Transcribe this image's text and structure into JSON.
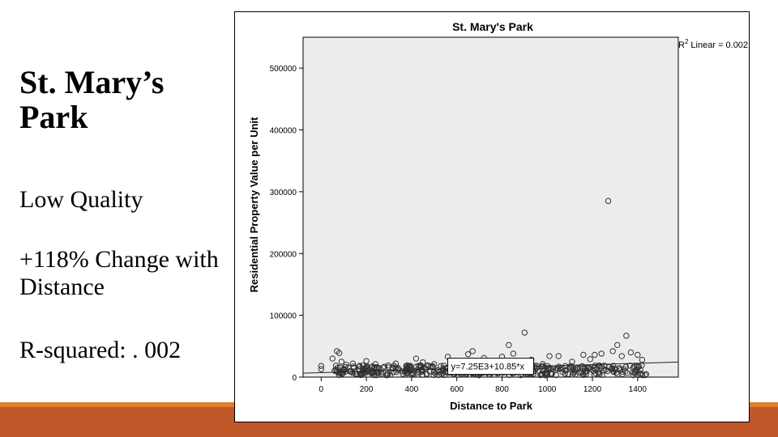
{
  "slide": {
    "title": "St. Mary’s Park",
    "quality": "Low Quality",
    "change": "+118% Change with Distance",
    "rsquared": "R-squared: . 002"
  },
  "colors": {
    "plot_bg": "#ececec",
    "marker": "#333333",
    "bar_light": "#e07d2e",
    "bar_dark": "#c0582a"
  },
  "chart_data": {
    "type": "scatter",
    "title": "St. Mary's Park",
    "xlabel": "Distance to Park",
    "ylabel": "Residential Property Value per Unit",
    "xlim": [
      -80,
      1580
    ],
    "ylim": [
      0,
      550000
    ],
    "xticks": [
      0,
      200,
      400,
      600,
      800,
      1000,
      1200,
      1400
    ],
    "yticks": [
      0,
      100000,
      200000,
      300000,
      400000,
      500000
    ],
    "xtick_labels": [
      "0",
      "200",
      "400",
      "600",
      "800",
      "1000",
      "1200",
      "1400"
    ],
    "ytick_labels": [
      "0",
      "100000",
      "200000",
      "300000",
      "400000",
      "500000"
    ],
    "fit_line": {
      "intercept": 7250,
      "slope": 10.85,
      "label": "y=7.25E3+10.85*x"
    },
    "legend": {
      "r2_symbol": "R",
      "r2_exponent": "2",
      "text": "Linear = 0.002"
    },
    "grid": false,
    "points": [
      {
        "x": 0,
        "y": 13000
      },
      {
        "x": 0,
        "y": 18000
      },
      {
        "x": 50,
        "y": 30000
      },
      {
        "x": 70,
        "y": 42000
      },
      {
        "x": 80,
        "y": 39000
      },
      {
        "x": 90,
        "y": 25000
      },
      {
        "x": 110,
        "y": 20000
      },
      {
        "x": 140,
        "y": 22000
      },
      {
        "x": 170,
        "y": 18000
      },
      {
        "x": 200,
        "y": 26000
      },
      {
        "x": 240,
        "y": 21000
      },
      {
        "x": 280,
        "y": 17000
      },
      {
        "x": 330,
        "y": 22000
      },
      {
        "x": 380,
        "y": 19000
      },
      {
        "x": 420,
        "y": 30000
      },
      {
        "x": 450,
        "y": 24000
      },
      {
        "x": 500,
        "y": 21000
      },
      {
        "x": 560,
        "y": 33000
      },
      {
        "x": 600,
        "y": 22000
      },
      {
        "x": 650,
        "y": 37000
      },
      {
        "x": 670,
        "y": 42000
      },
      {
        "x": 720,
        "y": 31000
      },
      {
        "x": 800,
        "y": 33000
      },
      {
        "x": 830,
        "y": 52000
      },
      {
        "x": 850,
        "y": 38000
      },
      {
        "x": 900,
        "y": 72000
      },
      {
        "x": 930,
        "y": 28000
      },
      {
        "x": 980,
        "y": 21000
      },
      {
        "x": 1010,
        "y": 34000
      },
      {
        "x": 1050,
        "y": 34000
      },
      {
        "x": 1110,
        "y": 25000
      },
      {
        "x": 1160,
        "y": 36000
      },
      {
        "x": 1190,
        "y": 29000
      },
      {
        "x": 1210,
        "y": 36000
      },
      {
        "x": 1240,
        "y": 38000
      },
      {
        "x": 1270,
        "y": 285000
      },
      {
        "x": 1290,
        "y": 42000
      },
      {
        "x": 1310,
        "y": 52000
      },
      {
        "x": 1330,
        "y": 34000
      },
      {
        "x": 1350,
        "y": 67000
      },
      {
        "x": 1370,
        "y": 40000
      },
      {
        "x": 1400,
        "y": 36000
      },
      {
        "x": 1420,
        "y": 28000
      }
    ],
    "bands": [
      {
        "x0": 60,
        "x1": 1450,
        "ymin": 3000,
        "ymax": 19000,
        "count": 420
      }
    ]
  }
}
